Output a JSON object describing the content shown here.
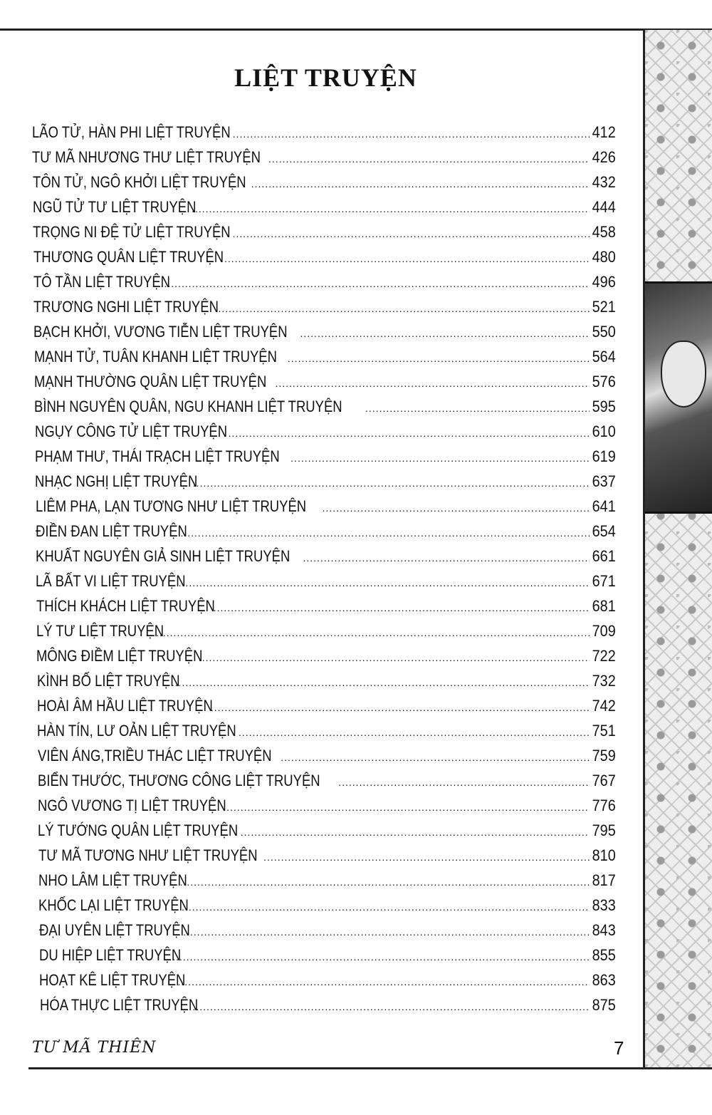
{
  "title": "LIỆT TRUYỆN",
  "entries": [
    {
      "name": "LÃO TỬ, HÀN PHI LIỆT TRUYỆN",
      "page": "412"
    },
    {
      "name": "TƯ MÃ NHƯƠNG THƯ LIỆT TRUYỆN",
      "page": "426"
    },
    {
      "name": "TÔN TỬ, NGÔ KHỞI LIỆT TRUYỆN",
      "page": "432"
    },
    {
      "name": "NGŨ TỬ TƯ LIỆT TRUYỆN",
      "page": "444"
    },
    {
      "name": "TRỌNG NI ĐỆ TỬ LIỆT TRUYỆN",
      "page": "458"
    },
    {
      "name": "THƯƠNG QUÂN LIỆT TRUYỆN",
      "page": "480"
    },
    {
      "name": "TÔ TẦN LIỆT TRUYỆN",
      "page": "496"
    },
    {
      "name": "TRƯƠNG NGHI LIỆT TRUYỆN",
      "page": "521"
    },
    {
      "name": "BẠCH KHỞI, VƯƠNG TIỄN LIỆT TRUYỆN",
      "page": "550"
    },
    {
      "name": "MẠNH TỬ, TUÂN KHANH LIỆT TRUYỆN",
      "page": "564"
    },
    {
      "name": "MẠNH THƯỜNG QUÂN LIỆT TRUYỆN",
      "page": "576"
    },
    {
      "name": "BÌNH NGUYÊN QUÂN, NGU KHANH LIỆT TRUYỆN",
      "page": "595"
    },
    {
      "name": "NGỤY CÔNG TỬ LIỆT TRUYỆN",
      "page": "610"
    },
    {
      "name": "PHẠM THƯ, THÁI TRẠCH LIỆT TRUYỆN",
      "page": "619"
    },
    {
      "name": "NHẠC NGHỊ LIỆT TRUYỆN",
      "page": "637"
    },
    {
      "name": "LIÊM PHA, LẠN TƯƠNG NHƯ LIỆT TRUYỆN",
      "page": "641"
    },
    {
      "name": "ĐIỀN ĐAN LIỆT TRUYỆN",
      "page": "654"
    },
    {
      "name": "KHUẤT NGUYÊN GIẢ SINH LIỆT TRUYỆN",
      "page": "661"
    },
    {
      "name": "LÃ BẤT VI LIỆT TRUYỆN",
      "page": "671"
    },
    {
      "name": "THÍCH KHÁCH LIỆT TRUYỆN",
      "page": "681"
    },
    {
      "name": "LÝ TƯ LIỆT TRUYỆN",
      "page": "709"
    },
    {
      "name": "MÔNG ĐIỀM LIỆT TRUYỆN",
      "page": "722"
    },
    {
      "name": "KÌNH BỐ LIỆT TRUYỆN",
      "page": "732"
    },
    {
      "name": "HOÀI ÂM HẦU LIỆT TRUYỆN",
      "page": "742"
    },
    {
      "name": "HÀN TÍN, LƯ OẢN LIỆT TRUYỆN",
      "page": "751"
    },
    {
      "name": "VIÊN ÁNG,TRIỀU THÁC LIỆT TRUYỆN",
      "page": "759"
    },
    {
      "name": "BIỂN THƯỚC, THƯƠNG CÔNG LIỆT TRUYỆN",
      "page": "767"
    },
    {
      "name": "NGÔ VƯƠNG TỊ LIỆT TRUYỆN",
      "page": "776"
    },
    {
      "name": "LÝ TƯỚNG QUÂN LIỆT TRUYỆN",
      "page": "795"
    },
    {
      "name": "TƯ MÃ TƯƠNG NHƯ LIỆT TRUYỆN",
      "page": "810"
    },
    {
      "name": "NHO LÂM LIỆT TRUYỆN",
      "page": "817"
    },
    {
      "name": "KHỐC LẠI LIỆT TRUYỆN",
      "page": "833"
    },
    {
      "name": "ĐẠI UYÊN LIỆT TRUYỆN",
      "page": "843"
    },
    {
      "name": "DU HIỆP LIỆT TRUYỆN",
      "page": "855"
    },
    {
      "name": "HOẠT KÊ LIỆT TRUYỆN",
      "page": "863"
    },
    {
      "name": "HÓA THỰC LIỆT TRUYỆN",
      "page": "875"
    }
  ],
  "footer": {
    "author": "TƯ MÃ THIÊN",
    "page_number": "7"
  }
}
